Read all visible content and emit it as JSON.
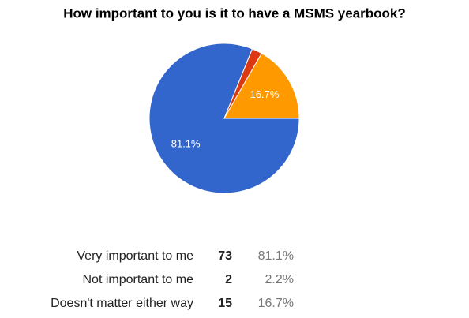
{
  "chart_data": {
    "type": "pie",
    "title": "How important to you is it to have a MSMS yearbook?",
    "categories": [
      "Very important to me",
      "Not important to me",
      "Doesn't matter either way"
    ],
    "values": [
      81.1,
      2.2,
      16.7
    ],
    "value_labels": [
      "81.1%",
      "2.2%",
      "16.7%"
    ],
    "counts": [
      73,
      2,
      15
    ],
    "colors": [
      "#3366cc",
      "#dc3912",
      "#ff9900"
    ]
  }
}
